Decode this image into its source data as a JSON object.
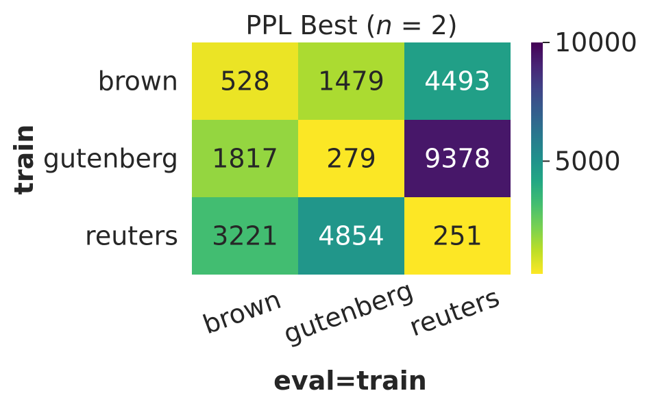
{
  "chart_data": {
    "type": "heatmap",
    "title": "PPL Best (n = 2)",
    "title_parts": [
      "PPL Best (",
      "n",
      " = 2)"
    ],
    "xlabel": "eval=train",
    "ylabel": "train",
    "x_categories": [
      "brown",
      "gutenberg",
      "reuters"
    ],
    "y_categories": [
      "brown",
      "gutenberg",
      "reuters"
    ],
    "values": [
      [
        528,
        1479,
        4493
      ],
      [
        1817,
        279,
        9378
      ],
      [
        3221,
        4854,
        251
      ]
    ],
    "colormap": "viridis_r",
    "vmin": 251,
    "vmax": 10000,
    "colorbar_ticks": [
      "10000",
      "5000"
    ],
    "colorbar_tick_values": [
      10000,
      5000
    ]
  }
}
